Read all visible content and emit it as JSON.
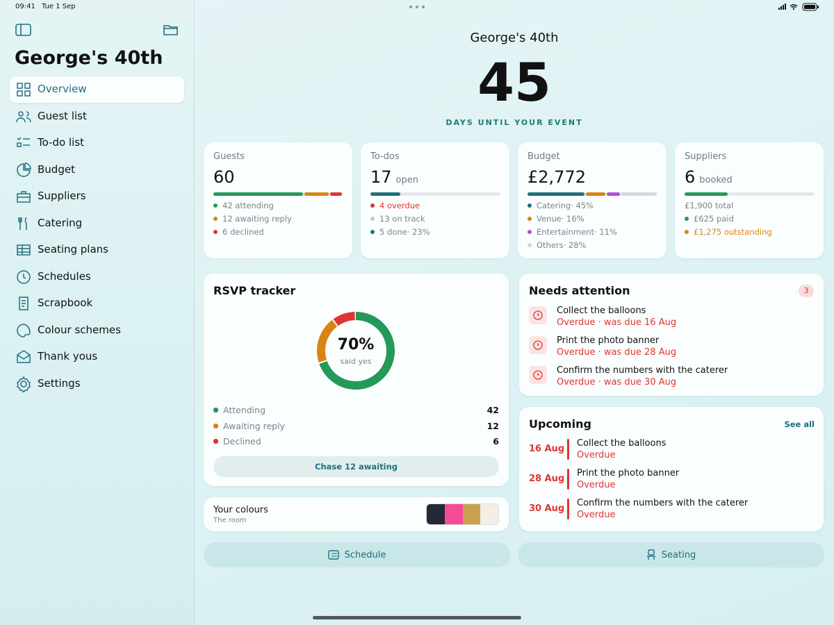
{
  "status_bar": {
    "time": "09:41",
    "date": "Tue 1 Sep"
  },
  "sidebar": {
    "title": "George's 40th",
    "selected": 0,
    "items": [
      "Overview",
      "Guest list",
      "To-do list",
      "Budget",
      "Suppliers",
      "Catering",
      "Seating plans",
      "Schedules",
      "Scrapbook",
      "Colour schemes",
      "Thank yous",
      "Settings"
    ]
  },
  "header": {
    "event": "George's 40th",
    "days": "45",
    "caption": "DAYS UNTIL YOUR EVENT"
  },
  "guests": {
    "title": "Guests",
    "total": "60",
    "items": [
      {
        "count": 42,
        "label": "attending",
        "color": "#23995a"
      },
      {
        "count": 12,
        "label": "awaiting reply",
        "color": "#d98414"
      },
      {
        "count": 6,
        "label": "declined",
        "color": "#e03530"
      }
    ]
  },
  "todos": {
    "title": "To-dos",
    "total": "17",
    "unit": "open",
    "items": [
      {
        "count": 4,
        "label": "overdue",
        "color": "#e03530"
      },
      {
        "count": 13,
        "label": "on track",
        "color": "#b3cfcf"
      },
      {
        "count": 5,
        "label": "done",
        "share": "23%",
        "color": "#1f6f80"
      }
    ]
  },
  "budget": {
    "title": "Budget",
    "total": "£2,772",
    "items": [
      {
        "name": "Catering",
        "share": 45,
        "share_label": "45%",
        "color": "#1f6f80"
      },
      {
        "name": "Venue",
        "share": 16,
        "share_label": "16%",
        "color": "#d98414"
      },
      {
        "name": "Entertainment",
        "share": 11,
        "share_label": "11%",
        "color": "#b04fd6"
      },
      {
        "name": "Others",
        "share": 28,
        "share_label": "28%",
        "color": "#d3d9dc"
      }
    ]
  },
  "suppliers": {
    "title": "Suppliers",
    "total": "6",
    "unit": "booked",
    "total_amount": {
      "value": 1900,
      "label": "£1,900"
    },
    "total_text": "total",
    "paid_amount": {
      "value": 625,
      "label": "£625"
    },
    "paid_text": "paid",
    "outstanding_amount": "£1,275",
    "outstanding_text": "outstanding"
  },
  "rsvp": {
    "title": "RSVP tracker",
    "center": {
      "value": 70,
      "label": "70%"
    },
    "center_caption": "said yes",
    "items": [
      {
        "name": "Attending",
        "count": 42,
        "color": "#23995a"
      },
      {
        "name": "Awaiting reply",
        "count": 12,
        "color": "#d98414"
      },
      {
        "name": "Declined",
        "count": 6,
        "color": "#e03530"
      }
    ],
    "button": "Chase 12 awaiting"
  },
  "colours": {
    "title": "Your colours",
    "subtitle": "The room",
    "swatches": [
      "#232a36",
      "#f54b9a",
      "#c9a24f",
      "#f3efe6"
    ]
  },
  "attention": {
    "title": "Needs attention",
    "badge": "3",
    "items": [
      {
        "title": "Collect the balloons",
        "detail": "Overdue · was due 16 Aug"
      },
      {
        "title": "Print the photo banner",
        "detail": "Overdue · was due 28 Aug"
      },
      {
        "title": "Confirm the numbers with the caterer",
        "detail": "Overdue · was due 30 Aug"
      }
    ]
  },
  "upcoming": {
    "title": "Upcoming",
    "link": "See all",
    "items": [
      {
        "date": "16 Aug",
        "title": "Collect the balloons",
        "status": "Overdue"
      },
      {
        "date": "28 Aug",
        "title": "Print the photo banner",
        "status": "Overdue"
      },
      {
        "date": "30 Aug",
        "title": "Confirm the numbers with the caterer",
        "status": "Overdue"
      }
    ]
  },
  "buttons": [
    "Schedule",
    "Seating"
  ]
}
